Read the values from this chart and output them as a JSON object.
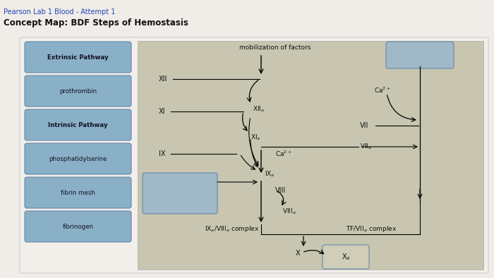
{
  "title_top": "Pearson Lab 1 Blood - Attempt 1",
  "title_main": "Concept Map: BDF Steps of Hemostasis",
  "bg_page": "#e8e5e0",
  "bg_inner": "#c8c5b0",
  "box_color": "#8ab0c8",
  "box_edge": "#6688aa",
  "box_text_color": "#111122",
  "sidebar_labels": [
    "Extrinsic Pathway",
    "prothrombin",
    "Intrinsic Pathway",
    "phosphatidylserine",
    "fibrin mesh",
    "fibrinogen"
  ],
  "sidebar_bold": [
    true,
    false,
    true,
    false,
    false,
    false
  ],
  "title_color": "#111111",
  "link_color": "#2244bb"
}
